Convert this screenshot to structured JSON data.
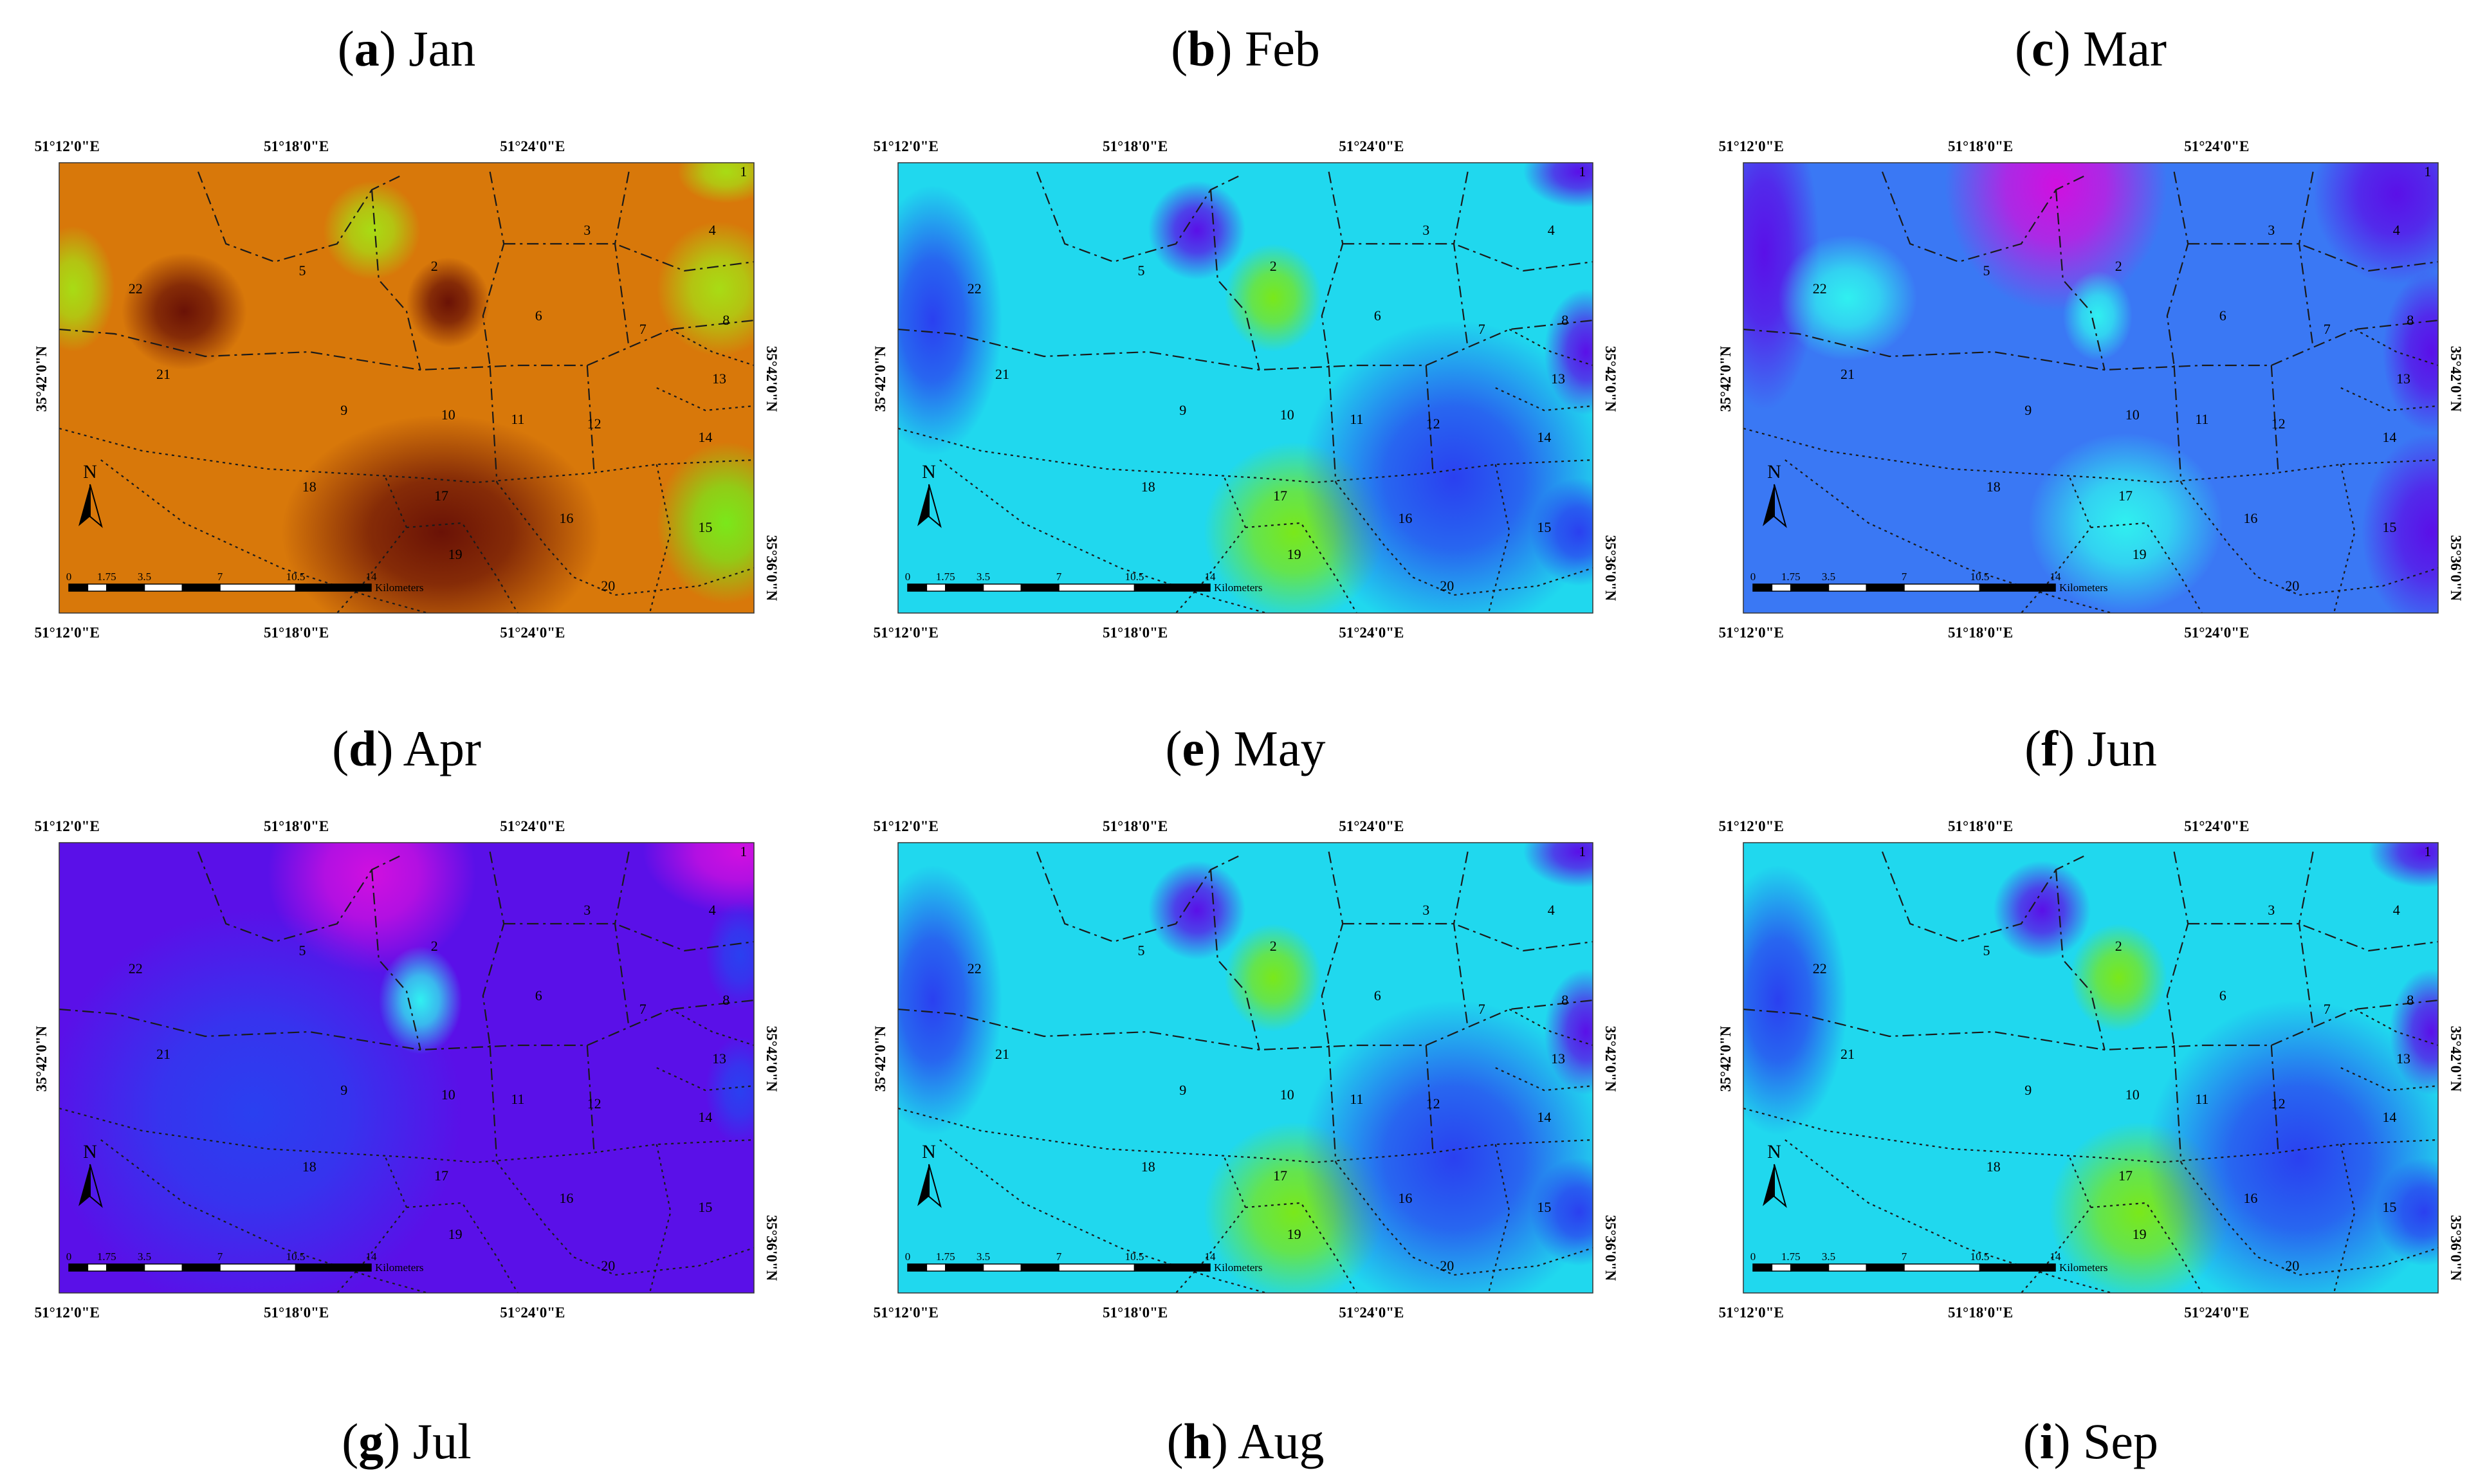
{
  "figure": {
    "panels": [
      {
        "letter": "a",
        "month": "Jan",
        "palette": "orange"
      },
      {
        "letter": "b",
        "month": "Feb",
        "palette": "cyan"
      },
      {
        "letter": "c",
        "month": "Mar",
        "palette": "blue"
      },
      {
        "letter": "d",
        "month": "Apr",
        "palette": "purple"
      },
      {
        "letter": "e",
        "month": "May",
        "palette": "cyan"
      },
      {
        "letter": "f",
        "month": "Jun",
        "palette": "cyan"
      },
      {
        "letter": "g",
        "month": "Jul",
        "palette": null
      },
      {
        "letter": "h",
        "month": "Aug",
        "palette": null
      },
      {
        "letter": "i",
        "month": "Sep",
        "palette": null
      }
    ],
    "lon_ticks": [
      "51°12'0\"E",
      "51°18'0\"E",
      "51°24'0\"E"
    ],
    "lat_ticks": [
      "35°42'0\"N",
      "35°36'0\"N"
    ],
    "north_label": "N",
    "scale_bar": {
      "ticks": [
        "0",
        "1.75",
        "3.5",
        "7",
        "10.5",
        "14"
      ],
      "unit": "Kilometers"
    },
    "district_labels": [
      "1",
      "2",
      "3",
      "4",
      "5",
      "6",
      "7",
      "8",
      "9",
      "10",
      "11",
      "12",
      "13",
      "14",
      "15",
      "16",
      "17",
      "18",
      "19",
      "20",
      "21",
      "22"
    ],
    "colors": {
      "orange_base": "#d8780a",
      "dark_brown": "#6a1206",
      "yellow_green": "#a8dc14",
      "cyan_base": "#20d8ee",
      "blue_base": "#3a78f4",
      "purple_base": "#5a10e8",
      "magenta": "#d010e0",
      "green": "#7ae81a"
    }
  }
}
